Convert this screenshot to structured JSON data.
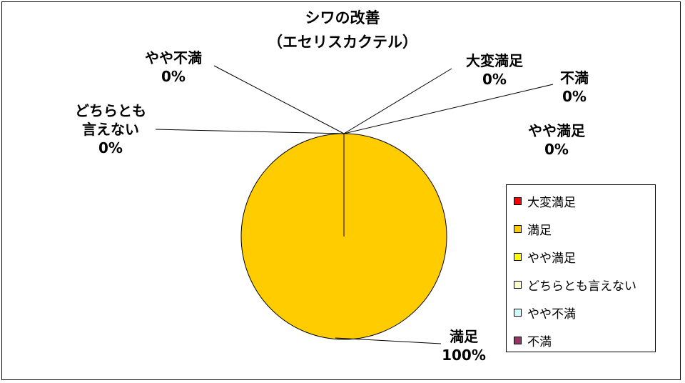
{
  "chart_data": {
    "type": "pie",
    "title": "シワの改善",
    "subtitle": "（エセリスカクテル）",
    "categories": [
      "大変満足",
      "満足",
      "やや満足",
      "どちらとも言えない",
      "やや不満",
      "不満"
    ],
    "values": [
      0,
      100,
      0,
      0,
      0,
      0
    ],
    "percent_labels": [
      "0%",
      "100%",
      "0%",
      "0%",
      "0%",
      "0%"
    ],
    "colors": [
      "#ff0000",
      "#ffcc00",
      "#ffff00",
      "#ffffcc",
      "#ccffff",
      "#993366"
    ],
    "legend_position": "right"
  },
  "labels": {
    "daimanzoku": {
      "line1": "大変満足",
      "pct": "0%"
    },
    "manzoku": {
      "line1": "満足",
      "pct": "100%"
    },
    "yaya_manzoku": {
      "line1": "やや満足",
      "pct": "0%"
    },
    "dochira": {
      "line1": "どちらとも",
      "line2": "言えない",
      "pct": "0%"
    },
    "yaya_fuman": {
      "line1": "やや不満",
      "pct": "0%"
    },
    "fuman": {
      "line1": "不満",
      "pct": "0%"
    }
  }
}
